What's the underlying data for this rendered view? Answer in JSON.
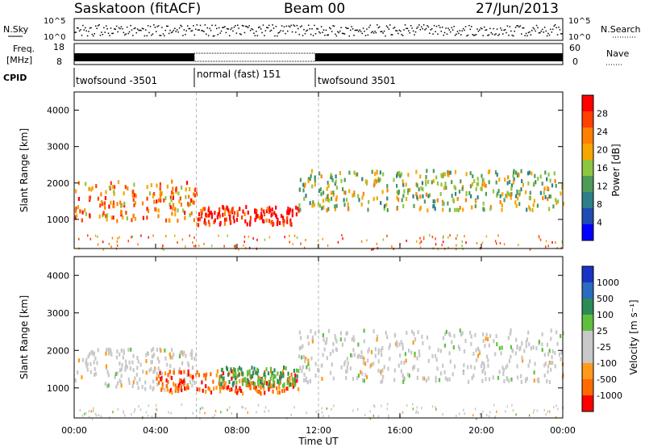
{
  "header": {
    "station": "Saskatoon (fitACF)",
    "beam": "Beam 00",
    "date": "27/Jun/2013"
  },
  "aux": {
    "nsky_label": "N.Sky",
    "nsearch_label": "N.Search",
    "freq_label_1": "Freq.",
    "freq_label_2": "[MHz]",
    "nave_label": "Nave",
    "cpid_label": "CPID",
    "nsky_ticks": [
      "10^5",
      "10^0"
    ],
    "nsearch_ticks": [
      "10^5",
      "10^0"
    ],
    "freq_ticks": [
      "18",
      "8"
    ],
    "nave_ticks": [
      "60",
      "0"
    ]
  },
  "cpid": [
    {
      "label": "twofsound -3501",
      "start": 0,
      "end": 6
    },
    {
      "label": "normal (fast) 151",
      "start": 6,
      "end": 12
    },
    {
      "label": "twofsound 3501",
      "start": 12,
      "end": 24
    }
  ],
  "colors": {
    "power": [
      "#0000ff",
      "#1e4bb4",
      "#2f7f8a",
      "#4f9b5a",
      "#8ec63f",
      "#f7a600",
      "#ff8000",
      "#ff4000",
      "#ff0000"
    ],
    "velocity": [
      "#1a33c4",
      "#2a6cc0",
      "#2e8b57",
      "#5fbf3f",
      "#c8c8c8",
      "#c8c8c8",
      "#ff9a1a",
      "#ff6a00",
      "#ff0000"
    ]
  },
  "chart_data": [
    {
      "type": "heatmap",
      "xlabel": "Time UT",
      "ylabel": "Slant Range [km]",
      "xlim": [
        0,
        24
      ],
      "ylim": [
        200,
        4500
      ],
      "yticks": [
        "1000",
        "2000",
        "3000",
        "4000"
      ],
      "xticks": [
        "00:00",
        "04:00",
        "08:00",
        "12:00",
        "16:00",
        "20:00",
        "00:00"
      ],
      "colorbar_label": "Power [dB]",
      "colorbar_ticks": [
        "4",
        "8",
        "12",
        "16",
        "20",
        "24",
        "28"
      ],
      "grid": false,
      "bands": [
        {
          "t": [
            0,
            6
          ],
          "range": [
            1000,
            2100
          ],
          "value_db": 20
        },
        {
          "t": [
            6,
            11
          ],
          "range": [
            900,
            1400
          ],
          "value_db": 28
        },
        {
          "t": [
            11,
            24
          ],
          "range": [
            1300,
            2400
          ],
          "value_db": 14
        }
      ]
    },
    {
      "type": "heatmap",
      "xlabel": "Time UT",
      "ylabel": "Slant Range [km]",
      "xlim": [
        0,
        24
      ],
      "ylim": [
        200,
        4500
      ],
      "yticks": [
        "1000",
        "2000",
        "3000",
        "4000"
      ],
      "xticks": [
        "00:00",
        "04:00",
        "08:00",
        "12:00",
        "16:00",
        "20:00",
        "00:00"
      ],
      "colorbar_label": "Velocity [m s⁻¹]",
      "colorbar_ticks": [
        "1000",
        "500",
        "100",
        "25",
        "-25",
        "-100",
        "-500",
        "-1000"
      ],
      "grid": false,
      "bands": [
        {
          "t": [
            0,
            6
          ],
          "range": [
            1000,
            2100
          ],
          "value_ms": 0
        },
        {
          "t": [
            4,
            11
          ],
          "range": [
            900,
            1500
          ],
          "value_ms": -300
        },
        {
          "t": [
            7,
            11
          ],
          "range": [
            1100,
            1600
          ],
          "value_ms": 150
        },
        {
          "t": [
            11,
            24
          ],
          "range": [
            1200,
            2600
          ],
          "value_ms": 0
        }
      ]
    }
  ],
  "vlines_ut": [
    6,
    12
  ]
}
